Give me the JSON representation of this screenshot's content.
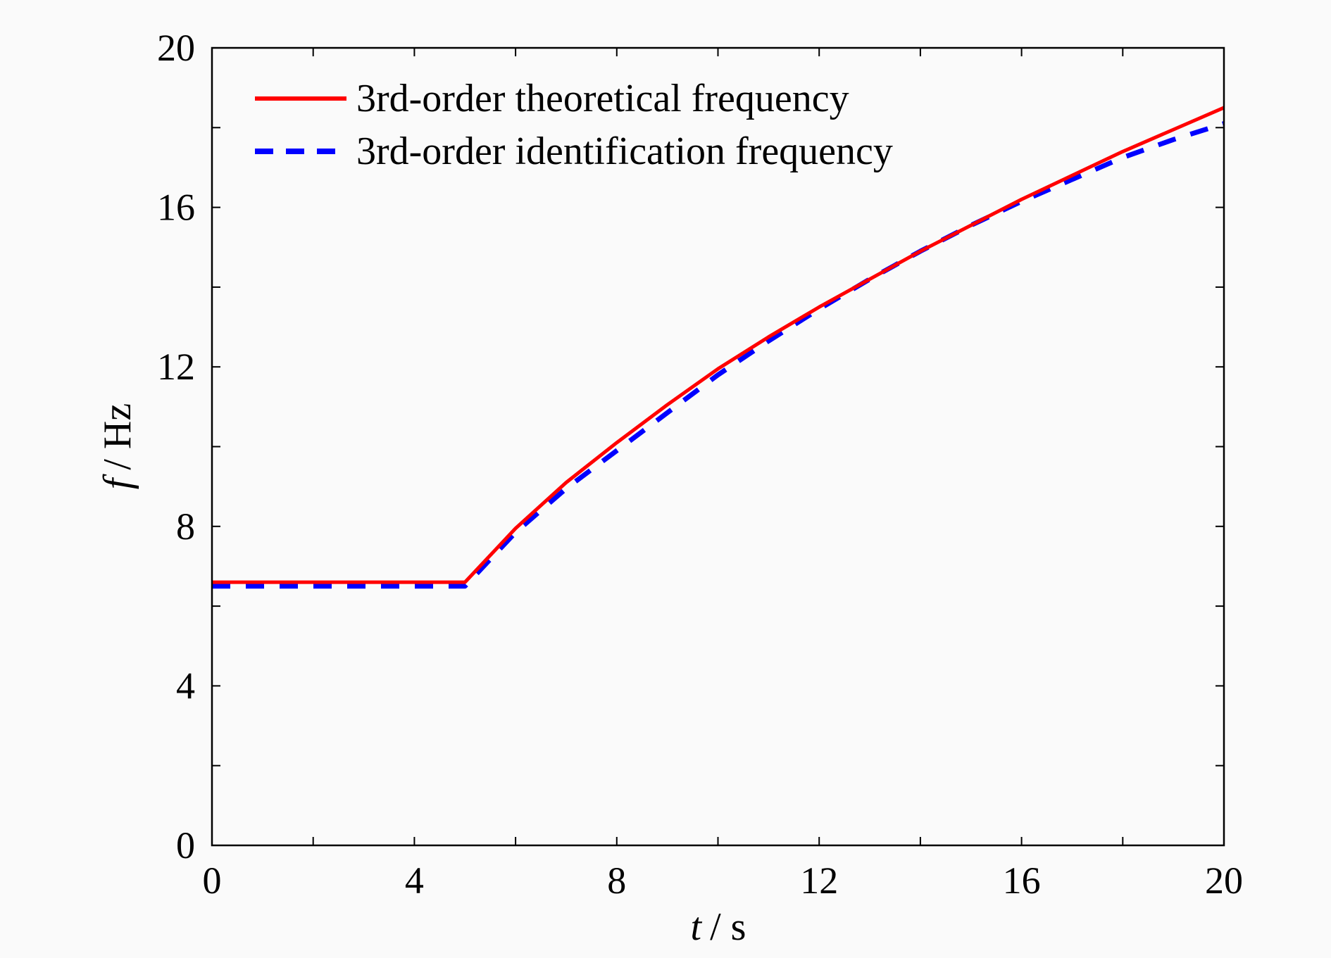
{
  "chart_data": {
    "type": "line",
    "title": "",
    "xlabel": "t / s",
    "xlabel_var": "t",
    "xlabel_unit": "/ s",
    "ylabel": "f / Hz",
    "ylabel_var": "f",
    "ylabel_unit": "/ Hz",
    "xlim": [
      0,
      20
    ],
    "ylim": [
      0,
      20
    ],
    "xticks": [
      0,
      4,
      8,
      12,
      16,
      20
    ],
    "yticks": [
      0,
      4,
      8,
      12,
      16,
      20
    ],
    "grid": false,
    "legend_position": "top-left",
    "series": [
      {
        "name": "3rd-order theoretical frequency",
        "color": "#ff0000",
        "style": "solid",
        "x": [
          0,
          5,
          6,
          7,
          8,
          9,
          10,
          11,
          12,
          13,
          14,
          15,
          16,
          17,
          18,
          19,
          20
        ],
        "y": [
          6.6,
          6.6,
          7.95,
          9.1,
          10.1,
          11.05,
          11.95,
          12.75,
          13.5,
          14.2,
          14.9,
          15.55,
          16.2,
          16.8,
          17.4,
          17.95,
          18.5
        ]
      },
      {
        "name": "3rd-order identification frequency",
        "color": "#0000ff",
        "style": "dashed",
        "x": [
          0,
          5,
          6,
          7,
          8,
          9,
          10,
          11,
          12,
          13,
          14,
          15,
          16,
          17,
          18,
          19,
          20
        ],
        "y": [
          6.5,
          6.5,
          7.85,
          8.95,
          9.9,
          10.85,
          11.8,
          12.65,
          13.45,
          14.2,
          14.9,
          15.55,
          16.15,
          16.7,
          17.25,
          17.7,
          18.1
        ]
      }
    ]
  }
}
